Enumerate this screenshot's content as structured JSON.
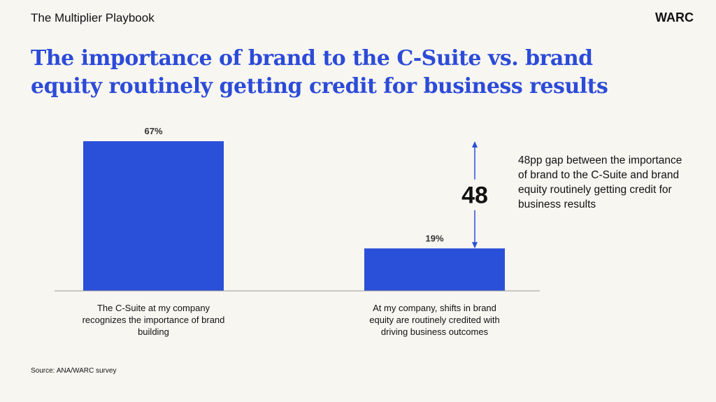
{
  "header": {
    "title": "The Multiplier Playbook",
    "logo": "WARC"
  },
  "chart_data": {
    "type": "bar",
    "title": "The importance of brand to the C-Suite vs. brand equity routinely getting credit for business results",
    "categories": [
      "The C-Suite at my company recognizes the importance of brand building",
      "At my company, shifts in brand equity are routinely credited with driving business outcomes"
    ],
    "values": [
      67,
      19
    ],
    "value_labels": [
      "67%",
      "19%"
    ],
    "color": "#2a4fd8",
    "ylim": [
      0,
      70
    ],
    "annotation": {
      "label": "48",
      "text": "48pp gap between the importance of brand to the C-Suite and brand equity routinely getting credit for business results"
    }
  },
  "footer": {
    "source": "Source: ANA/WARC survey"
  }
}
